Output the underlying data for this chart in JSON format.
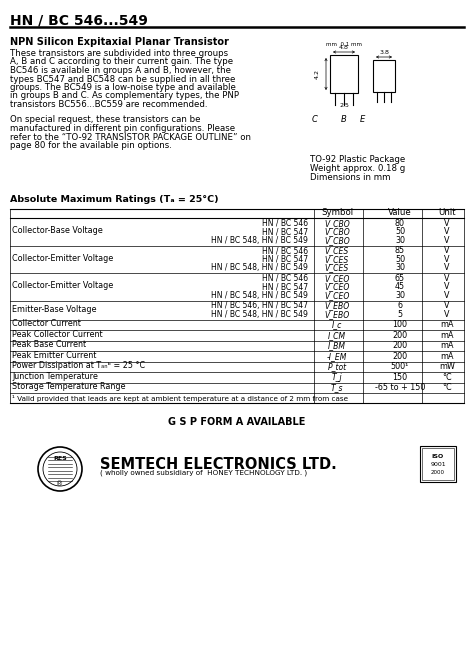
{
  "title": "HN / BC 546...549",
  "subtitle": "NPN Silicon Expitaxial Planar Transistor",
  "desc1": "These transistors are subdivided into three groups A, B and C according to their current gain. The type BC546 is available in groups A and B, however, the types BC547 and BC548 can be supplied in all three groups. The BC549 is a low-noise type and available in groups B and C. As complementary types, the PNP transistors BC556...BC559 are recommended.",
  "desc2": "On special request, these transistors can be manufactured in different pin configurations. Please refer to the “TO-92 TRANSISTOR PACKAGE OUTLINE” on page 80 for the available pin options.",
  "pkg_label": "TO-92 Plastic Package\nWeight approx. 0.18 g\nDimensions in mm",
  "ratings_title": "Absolute Maximum Ratings (Tₐ = 25°C)",
  "col_headers": [
    "Symbol",
    "Value",
    "Unit"
  ],
  "rows": [
    {
      "param": "Collector-Base Voltage",
      "subrows": [
        {
          "model": "HN / BC 546",
          "sym": "V_CBO",
          "val": "80",
          "unit": "V"
        },
        {
          "model": "HN / BC 547",
          "sym": "V_CBO",
          "val": "50",
          "unit": "V"
        },
        {
          "model": "HN / BC 548, HN / BC 549",
          "sym": "V_CBO",
          "val": "30",
          "unit": "V"
        }
      ]
    },
    {
      "param": "Collector-Emitter Voltage",
      "subrows": [
        {
          "model": "HN / BC 546",
          "sym": "V_CES",
          "val": "85",
          "unit": "V"
        },
        {
          "model": "HN / BC 547",
          "sym": "V_CES",
          "val": "50",
          "unit": "V"
        },
        {
          "model": "HN / BC 548, HN / BC 549",
          "sym": "V_CES",
          "val": "30",
          "unit": "V"
        }
      ]
    },
    {
      "param": "Collector-Emitter Voltage",
      "subrows": [
        {
          "model": "HN / BC 546",
          "sym": "V_CEO",
          "val": "65",
          "unit": "V"
        },
        {
          "model": "HN / BC 547",
          "sym": "V_CEO",
          "val": "45",
          "unit": "V"
        },
        {
          "model": "HN / BC 548, HN / BC 549",
          "sym": "V_CEO",
          "val": "30",
          "unit": "V"
        }
      ]
    },
    {
      "param": "Emitter-Base Voltage",
      "subrows": [
        {
          "model": "HN / BC 546, HN / BC 547",
          "sym": "V_EBO",
          "val": "6",
          "unit": "V"
        },
        {
          "model": "HN / BC 548, HN / BC 549",
          "sym": "V_EBO",
          "val": "5",
          "unit": "V"
        }
      ]
    },
    {
      "param": "Collector Current",
      "subrows": [
        {
          "model": "",
          "sym": "I_c",
          "val": "100",
          "unit": "mA"
        }
      ]
    },
    {
      "param": "Peak Collector Current",
      "subrows": [
        {
          "model": "",
          "sym": "I_CM",
          "val": "200",
          "unit": "mA"
        }
      ]
    },
    {
      "param": "Peak Base Current",
      "subrows": [
        {
          "model": "",
          "sym": "I_BM",
          "val": "200",
          "unit": "mA"
        }
      ]
    },
    {
      "param": "Peak Emitter Current",
      "subrows": [
        {
          "model": "",
          "sym": "-I_EM",
          "val": "200",
          "unit": "mA"
        }
      ]
    },
    {
      "param": "Power Dissipation at Tₐₙᵇ = 25 °C",
      "subrows": [
        {
          "model": "",
          "sym": "P_tot",
          "val": "500¹",
          "unit": "mW"
        }
      ]
    },
    {
      "param": "Junction Temperature",
      "subrows": [
        {
          "model": "",
          "sym": "T_j",
          "val": "150",
          "unit": "°C"
        }
      ]
    },
    {
      "param": "Storage Temperature Range",
      "subrows": [
        {
          "model": "",
          "sym": "T_s",
          "val": "-65 to + 150",
          "unit": "°C"
        }
      ]
    }
  ],
  "footnote": "¹ Valid provided that leads are kept at ambient temperature at a distance of 2 mm from case",
  "gsp": "G S P FORM A AVAILABLE",
  "company": "SEMTECH ELECTRONICS LTD.",
  "company_sub": "( wholly owned subsidiary of  HONEY TECHNOLOGY LTD. )"
}
